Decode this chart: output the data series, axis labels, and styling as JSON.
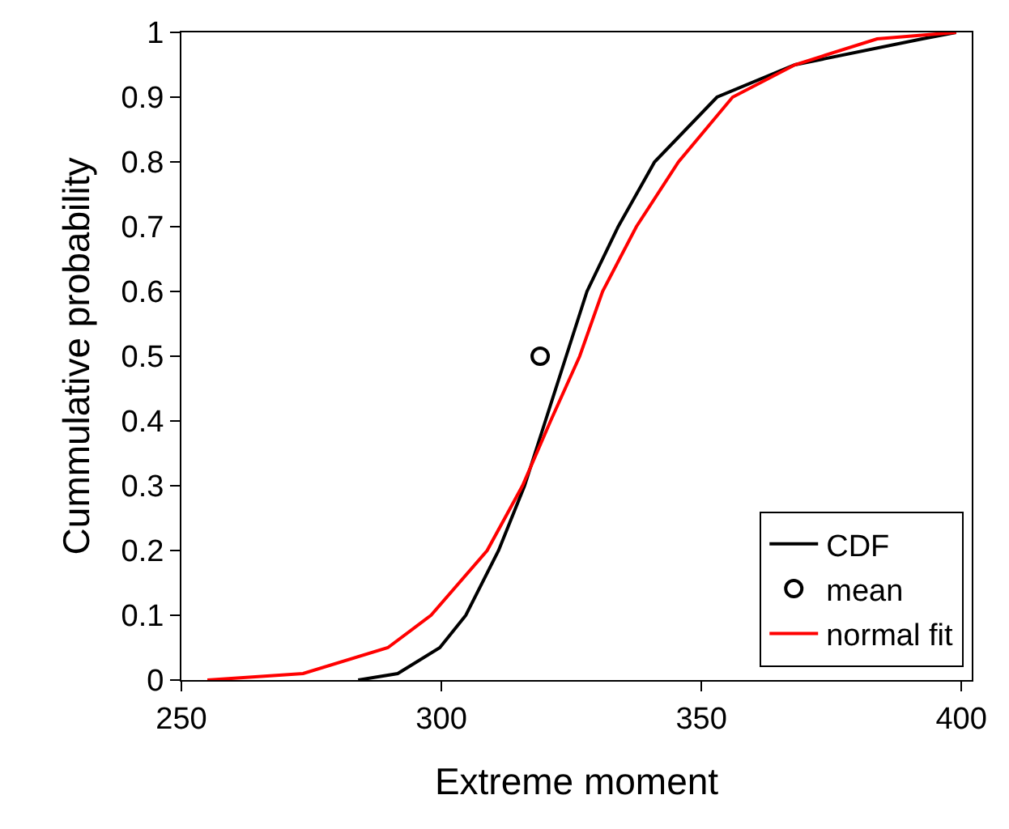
{
  "chart_data": {
    "type": "line",
    "xlabel": "Extreme moment",
    "ylabel": "Cummulative probability",
    "xlim": [
      250,
      402
    ],
    "xticks": [
      250,
      300,
      350,
      400
    ],
    "ylim": [
      0,
      1
    ],
    "yticks": [
      0,
      0.1,
      0.2,
      0.3,
      0.4,
      0.5,
      0.6,
      0.7,
      0.8,
      0.9,
      1
    ],
    "grid": false,
    "legend": "bottom right",
    "line_style": "solid",
    "series": [
      {
        "name": "CDF",
        "color": "#000000",
        "x": [
          284,
          291.6,
          299.7,
          304.7,
          311,
          316,
          320,
          324,
          328,
          334,
          341,
          353,
          368,
          392.5,
          399
        ],
        "values": [
          0,
          0.01,
          0.05,
          0.1,
          0.2,
          0.3,
          0.4,
          0.5,
          0.6,
          0.7,
          0.8,
          0.9,
          0.95,
          0.99,
          1
        ]
      },
      {
        "name": "mean",
        "type": "scatter",
        "marker": "circle",
        "color": "#000000",
        "x": [
          319
        ],
        "values": [
          0.5
        ]
      },
      {
        "name": "normal fit",
        "color": "#ff0000",
        "x": [
          255,
          273.4,
          289.7,
          298,
          308.8,
          315.6,
          321,
          326.6,
          331,
          337.5,
          345.6,
          356,
          368,
          383.8,
          399
        ],
        "values": [
          0,
          0.01,
          0.05,
          0.1,
          0.2,
          0.3,
          0.4,
          0.5,
          0.6,
          0.7,
          0.8,
          0.9,
          0.95,
          0.99,
          1
        ]
      }
    ]
  }
}
